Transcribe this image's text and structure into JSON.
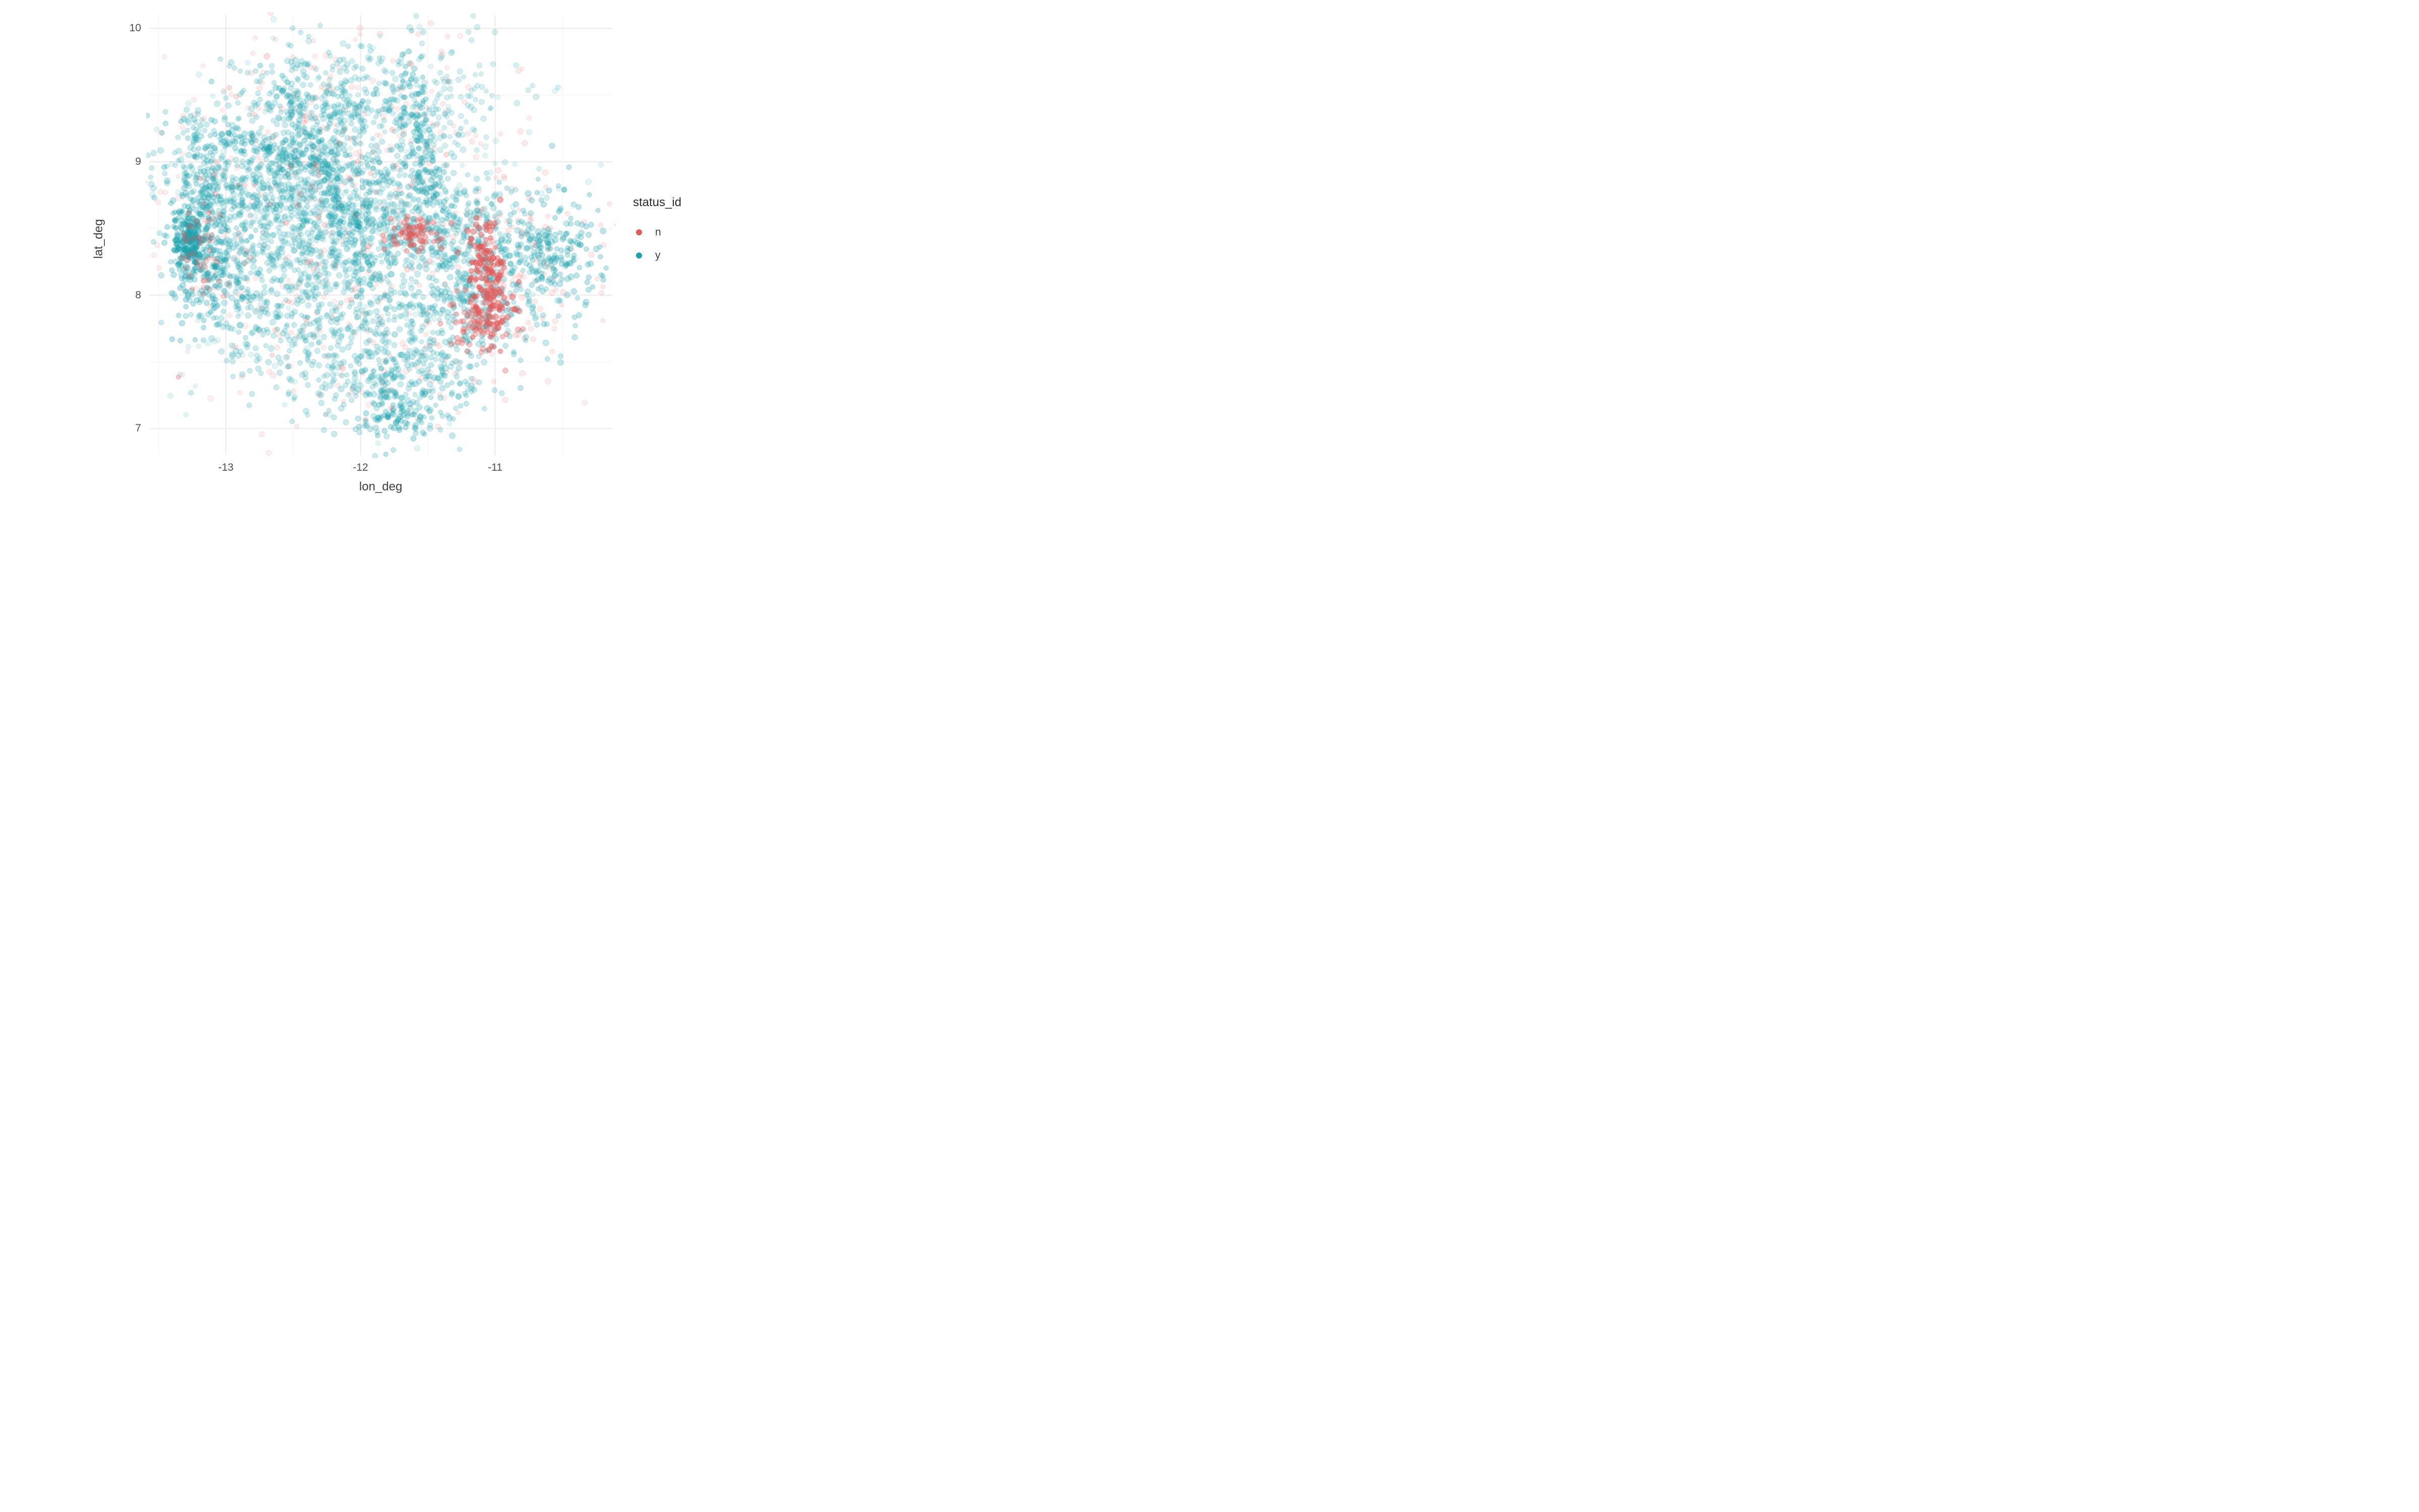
{
  "chart_data": {
    "type": "scatter",
    "title": "",
    "xlabel": "lon_deg",
    "ylabel": "lat_deg",
    "xlim": [
      -13.57,
      -10.13
    ],
    "ylim": [
      6.8,
      10.1
    ],
    "xticks": [
      -13,
      -12,
      -11
    ],
    "yticks": [
      7,
      8,
      9,
      10
    ],
    "grid": "major+minor",
    "legend": {
      "title": "status_id",
      "position": "right",
      "items": [
        {
          "label": "n",
          "color": "#e05c5c"
        },
        {
          "label": "y",
          "color": "#1ba3ae"
        }
      ]
    },
    "palette": {
      "n": "#e05c5c",
      "y": "#1ba3ae"
    },
    "point": {
      "radius": 5.2,
      "stroke_width": 0.9
    },
    "note": "Approximately 5000 semi-transparent points; distribution approximated by gaussian clusters below (s=series, x=lon, y=lat, sx/sy=std dev, n=count, a=alpha, rot=rotation deg)",
    "clusters": [
      {
        "s": "n",
        "x": -12.3,
        "y": 8.6,
        "sx": 0.75,
        "sy": 0.6,
        "n": 260,
        "a": 0.1,
        "rot": 0
      },
      {
        "s": "n",
        "x": -12.0,
        "y": 9.4,
        "sx": 0.5,
        "sy": 0.35,
        "n": 80,
        "a": 0.12,
        "rot": 0
      },
      {
        "s": "n",
        "x": -11.9,
        "y": 7.5,
        "sx": 0.45,
        "sy": 0.3,
        "n": 80,
        "a": 0.12,
        "rot": 0
      },
      {
        "s": "n",
        "x": -10.9,
        "y": 8.3,
        "sx": 0.35,
        "sy": 0.4,
        "n": 110,
        "a": 0.13,
        "rot": 0
      },
      {
        "s": "y",
        "x": -12.45,
        "y": 8.75,
        "sx": 0.45,
        "sy": 0.35,
        "n": 650,
        "a": 0.22,
        "rot": 0
      },
      {
        "s": "y",
        "x": -12.9,
        "y": 8.9,
        "sx": 0.3,
        "sy": 0.28,
        "n": 280,
        "a": 0.22,
        "rot": 0
      },
      {
        "s": "y",
        "x": -13.2,
        "y": 8.45,
        "sx": 0.12,
        "sy": 0.3,
        "n": 230,
        "a": 0.3,
        "rot": 0
      },
      {
        "s": "y",
        "x": -13.27,
        "y": 8.38,
        "sx": 0.05,
        "sy": 0.1,
        "n": 100,
        "a": 0.5,
        "rot": 0
      },
      {
        "s": "y",
        "x": -13.0,
        "y": 8.15,
        "sx": 0.2,
        "sy": 0.18,
        "n": 130,
        "a": 0.25,
        "rot": 0
      },
      {
        "s": "y",
        "x": -12.25,
        "y": 9.45,
        "sx": 0.3,
        "sy": 0.22,
        "n": 250,
        "a": 0.22,
        "rot": 0
      },
      {
        "s": "y",
        "x": -12.5,
        "y": 9.05,
        "sx": 0.55,
        "sy": 0.07,
        "n": 150,
        "a": 0.28,
        "rot": -15
      },
      {
        "s": "y",
        "x": -11.55,
        "y": 9.45,
        "sx": 0.35,
        "sy": 0.28,
        "n": 200,
        "a": 0.18,
        "rot": 0
      },
      {
        "s": "y",
        "x": -11.55,
        "y": 9.1,
        "sx": 0.07,
        "sy": 0.4,
        "n": 130,
        "a": 0.3,
        "rot": 10
      },
      {
        "s": "y",
        "x": -12.0,
        "y": 8.3,
        "sx": 0.38,
        "sy": 0.3,
        "n": 300,
        "a": 0.22,
        "rot": 0
      },
      {
        "s": "y",
        "x": -11.5,
        "y": 8.6,
        "sx": 0.3,
        "sy": 0.25,
        "n": 230,
        "a": 0.22,
        "rot": 0
      },
      {
        "s": "y",
        "x": -11.1,
        "y": 8.15,
        "sx": 0.28,
        "sy": 0.35,
        "n": 380,
        "a": 0.25,
        "rot": 0
      },
      {
        "s": "y",
        "x": -10.55,
        "y": 8.35,
        "sx": 0.17,
        "sy": 0.22,
        "n": 180,
        "a": 0.28,
        "rot": 0
      },
      {
        "s": "y",
        "x": -11.9,
        "y": 7.55,
        "sx": 0.4,
        "sy": 0.28,
        "n": 320,
        "a": 0.22,
        "rot": 0
      },
      {
        "s": "y",
        "x": -11.55,
        "y": 7.35,
        "sx": 0.25,
        "sy": 0.18,
        "n": 130,
        "a": 0.25,
        "rot": 0
      },
      {
        "s": "y",
        "x": -11.75,
        "y": 7.08,
        "sx": 0.12,
        "sy": 0.08,
        "n": 60,
        "a": 0.3,
        "rot": 0
      },
      {
        "s": "y",
        "x": -12.6,
        "y": 7.85,
        "sx": 0.3,
        "sy": 0.25,
        "n": 200,
        "a": 0.22,
        "rot": 0
      },
      {
        "s": "y",
        "x": -12.2,
        "y": 8.75,
        "sx": 0.06,
        "sy": 0.5,
        "n": 120,
        "a": 0.3,
        "rot": 25
      },
      {
        "s": "y",
        "x": -12.2,
        "y": 8.5,
        "sx": 0.8,
        "sy": 0.65,
        "n": 250,
        "a": 0.12,
        "rot": 0
      },
      {
        "s": "n",
        "x": -13.2,
        "y": 8.35,
        "sx": 0.08,
        "sy": 0.18,
        "n": 45,
        "a": 0.25,
        "rot": 0
      },
      {
        "s": "n",
        "x": -11.6,
        "y": 8.45,
        "sx": 0.09,
        "sy": 0.07,
        "n": 70,
        "a": 0.4,
        "rot": 0
      },
      {
        "s": "n",
        "x": -11.05,
        "y": 8.1,
        "sx": 0.07,
        "sy": 0.22,
        "n": 170,
        "a": 0.5,
        "rot": 8
      },
      {
        "s": "n",
        "x": -11.12,
        "y": 7.8,
        "sx": 0.12,
        "sy": 0.12,
        "n": 85,
        "a": 0.35,
        "rot": 0
      },
      {
        "s": "n",
        "x": -13.35,
        "y": 7.38,
        "sx": 0.01,
        "sy": 0.01,
        "n": 1,
        "a": 0.3,
        "rot": 0
      },
      {
        "s": "n",
        "x": -12.3,
        "y": 8.6,
        "sx": 0.6,
        "sy": 0.5,
        "n": 60,
        "a": 0.2,
        "rot": 0
      }
    ]
  },
  "colors": {
    "background": "#ffffff",
    "grid_major": "#e3e3e3",
    "grid_minor": "#f1f1f1",
    "axis_text": "#4d4d4d"
  }
}
